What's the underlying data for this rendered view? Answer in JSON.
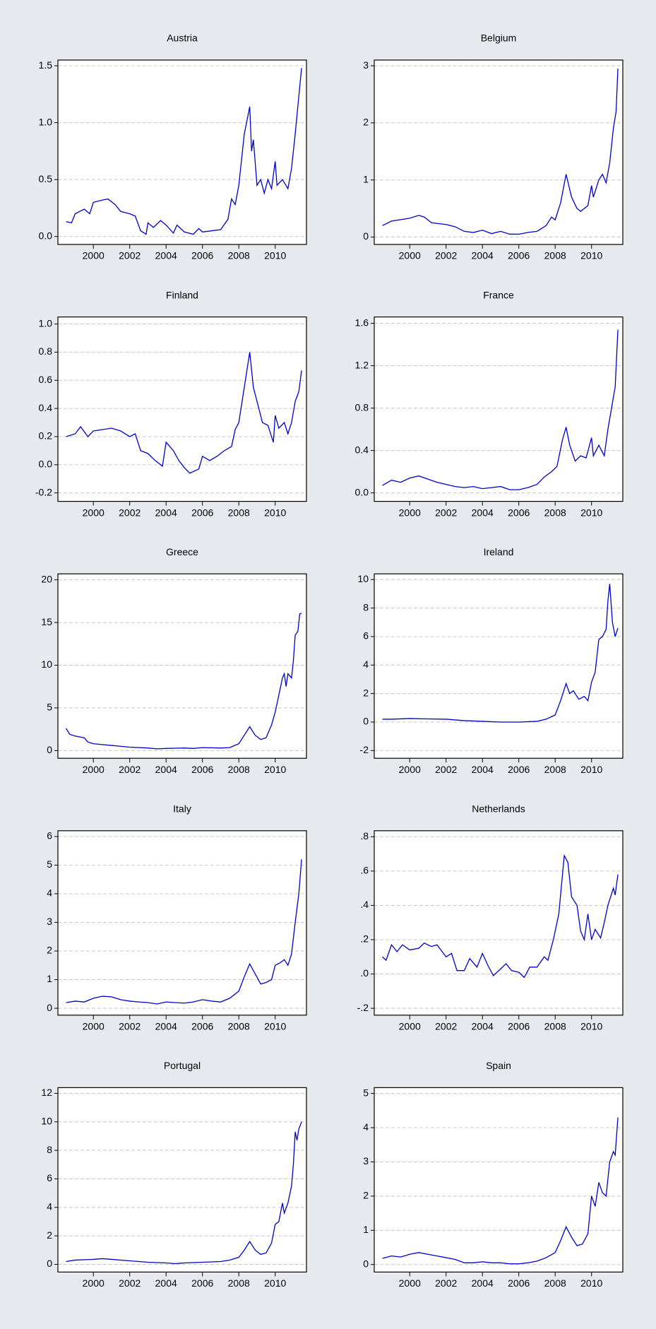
{
  "chart_data": [
    {
      "type": "line",
      "title": "Austria",
      "color": "#0000cc",
      "grid": true,
      "xlim": [
        1998.05,
        2011.72
      ],
      "xticks": [
        2000,
        2002,
        2004,
        2006,
        2008,
        2010
      ],
      "ylim": [
        -0.07,
        1.55
      ],
      "yticks": [
        {
          "value": 0,
          "label": "0.0"
        },
        {
          "value": 0.5,
          "label": "0.5"
        },
        {
          "value": 1,
          "label": "1.0"
        },
        {
          "value": 1.5,
          "label": "1.5"
        }
      ],
      "x": [
        1998.5,
        1998.8,
        1999.0,
        1999.5,
        1999.8,
        2000.0,
        2000.5,
        2000.8,
        2001.2,
        2001.5,
        2002.0,
        2002.3,
        2002.6,
        2002.9,
        2003.0,
        2003.3,
        2003.7,
        2004.0,
        2004.4,
        2004.6,
        2005.0,
        2005.5,
        2005.8,
        2006.0,
        2006.5,
        2007.0,
        2007.4,
        2007.6,
        2007.8,
        2008.0,
        2008.3,
        2008.6,
        2008.7,
        2008.8,
        2009.0,
        2009.2,
        2009.4,
        2009.6,
        2009.8,
        2010.0,
        2010.1,
        2010.4,
        2010.7,
        2010.9,
        2011.1,
        2011.45
      ],
      "values": [
        0.13,
        0.12,
        0.2,
        0.24,
        0.2,
        0.3,
        0.32,
        0.33,
        0.28,
        0.22,
        0.2,
        0.18,
        0.05,
        0.02,
        0.12,
        0.08,
        0.14,
        0.1,
        0.03,
        0.1,
        0.04,
        0.02,
        0.07,
        0.04,
        0.05,
        0.06,
        0.15,
        0.33,
        0.28,
        0.45,
        0.9,
        1.14,
        0.75,
        0.85,
        0.45,
        0.5,
        0.38,
        0.5,
        0.42,
        0.66,
        0.45,
        0.5,
        0.42,
        0.6,
        0.9,
        1.48
      ]
    },
    {
      "type": "line",
      "title": "Belgium",
      "color": "#0000cc",
      "grid": true,
      "xlim": [
        1998.05,
        2011.72
      ],
      "xticks": [
        2000,
        2002,
        2004,
        2006,
        2008,
        2010
      ],
      "ylim": [
        -0.13,
        3.1
      ],
      "yticks": [
        0,
        1,
        2,
        3
      ],
      "x": [
        1998.5,
        1999.0,
        2000.0,
        2000.5,
        2000.8,
        2001.2,
        2002.0,
        2002.5,
        2003.0,
        2003.5,
        2004.0,
        2004.5,
        2005.0,
        2005.5,
        2006.0,
        2006.5,
        2007.0,
        2007.5,
        2007.8,
        2008.0,
        2008.3,
        2008.6,
        2008.9,
        2009.2,
        2009.4,
        2009.8,
        2010.0,
        2010.1,
        2010.4,
        2010.6,
        2010.8,
        2011.0,
        2011.2,
        2011.35,
        2011.45
      ],
      "values": [
        0.2,
        0.28,
        0.33,
        0.38,
        0.35,
        0.25,
        0.22,
        0.18,
        0.1,
        0.08,
        0.12,
        0.06,
        0.1,
        0.05,
        0.05,
        0.08,
        0.1,
        0.2,
        0.35,
        0.3,
        0.6,
        1.1,
        0.7,
        0.5,
        0.45,
        0.55,
        0.9,
        0.7,
        1.0,
        1.1,
        0.95,
        1.3,
        1.9,
        2.2,
        2.95
      ]
    },
    {
      "type": "line",
      "title": "Finland",
      "color": "#0000cc",
      "grid": true,
      "xlim": [
        1998.05,
        2011.72
      ],
      "xticks": [
        2000,
        2002,
        2004,
        2006,
        2008,
        2010
      ],
      "ylim": [
        -0.26,
        1.05
      ],
      "yticks": [
        -0.2,
        {
          "value": 0,
          "label": "0.0"
        },
        0.2,
        0.4,
        0.6,
        0.8,
        {
          "value": 1,
          "label": "1.0"
        }
      ],
      "x": [
        1998.5,
        1999.0,
        1999.3,
        1999.7,
        2000.0,
        2000.5,
        2001.0,
        2001.5,
        2002.0,
        2002.3,
        2002.6,
        2003.0,
        2003.4,
        2003.8,
        2004.0,
        2004.4,
        2004.7,
        2005.0,
        2005.3,
        2005.8,
        2006.0,
        2006.4,
        2006.8,
        2007.2,
        2007.6,
        2007.8,
        2008.0,
        2008.3,
        2008.6,
        2008.8,
        2009.0,
        2009.3,
        2009.6,
        2009.9,
        2010.0,
        2010.2,
        2010.5,
        2010.7,
        2010.9,
        2011.1,
        2011.3,
        2011.45
      ],
      "values": [
        0.2,
        0.22,
        0.27,
        0.2,
        0.24,
        0.25,
        0.26,
        0.24,
        0.2,
        0.22,
        0.1,
        0.08,
        0.03,
        -0.01,
        0.16,
        0.1,
        0.03,
        -0.02,
        -0.06,
        -0.03,
        0.06,
        0.03,
        0.06,
        0.1,
        0.13,
        0.25,
        0.3,
        0.55,
        0.8,
        0.55,
        0.45,
        0.3,
        0.28,
        0.16,
        0.35,
        0.26,
        0.3,
        0.22,
        0.3,
        0.45,
        0.52,
        0.67
      ]
    },
    {
      "type": "line",
      "title": "France",
      "color": "#0000cc",
      "grid": true,
      "xlim": [
        1998.05,
        2011.72
      ],
      "xticks": [
        2000,
        2002,
        2004,
        2006,
        2008,
        2010
      ],
      "ylim": [
        -0.08,
        1.66
      ],
      "yticks": [
        {
          "value": 0,
          "label": "0.0"
        },
        0.4,
        0.8,
        1.2,
        1.6
      ],
      "x": [
        1998.5,
        1999.0,
        1999.5,
        2000.0,
        2000.5,
        2001.0,
        2001.5,
        2002.0,
        2002.5,
        2003.0,
        2003.5,
        2004.0,
        2004.5,
        2005.0,
        2005.5,
        2006.0,
        2006.5,
        2007.0,
        2007.4,
        2007.8,
        2008.1,
        2008.4,
        2008.6,
        2008.8,
        2009.1,
        2009.4,
        2009.7,
        2010.0,
        2010.1,
        2010.4,
        2010.7,
        2010.9,
        2011.1,
        2011.3,
        2011.45
      ],
      "values": [
        0.07,
        0.12,
        0.1,
        0.14,
        0.16,
        0.13,
        0.1,
        0.08,
        0.06,
        0.05,
        0.06,
        0.04,
        0.05,
        0.06,
        0.03,
        0.03,
        0.05,
        0.08,
        0.15,
        0.2,
        0.25,
        0.5,
        0.62,
        0.45,
        0.3,
        0.35,
        0.33,
        0.52,
        0.35,
        0.45,
        0.35,
        0.6,
        0.8,
        1.0,
        1.54
      ]
    },
    {
      "type": "line",
      "title": "Greece",
      "color": "#0000cc",
      "grid": true,
      "xlim": [
        1998.05,
        2011.72
      ],
      "xticks": [
        2000,
        2002,
        2004,
        2006,
        2008,
        2010
      ],
      "ylim": [
        -0.9,
        20.7
      ],
      "yticks": [
        0,
        5,
        10,
        15,
        20
      ],
      "x": [
        1998.5,
        1998.7,
        1999.0,
        1999.5,
        1999.7,
        2000.0,
        2000.5,
        2001.0,
        2001.5,
        2002.0,
        2003.0,
        2003.5,
        2004.0,
        2005.0,
        2005.5,
        2006.0,
        2007.0,
        2007.5,
        2008.0,
        2008.3,
        2008.6,
        2008.9,
        2009.2,
        2009.5,
        2009.8,
        2010.0,
        2010.2,
        2010.4,
        2010.5,
        2010.6,
        2010.7,
        2010.9,
        2011.0,
        2011.1,
        2011.25,
        2011.35,
        2011.45
      ],
      "values": [
        2.6,
        1.9,
        1.7,
        1.5,
        1.0,
        0.8,
        0.7,
        0.6,
        0.5,
        0.4,
        0.3,
        0.2,
        0.25,
        0.3,
        0.25,
        0.35,
        0.3,
        0.35,
        0.8,
        1.8,
        2.8,
        1.8,
        1.3,
        1.5,
        3.0,
        4.5,
        6.5,
        8.5,
        9.0,
        7.5,
        9.0,
        8.5,
        10.5,
        13.5,
        14.0,
        16.0,
        16.1
      ]
    },
    {
      "type": "line",
      "title": "Ireland",
      "color": "#0000cc",
      "grid": true,
      "xlim": [
        1998.05,
        2011.72
      ],
      "xticks": [
        2000,
        2002,
        2004,
        2006,
        2008,
        2010
      ],
      "ylim": [
        -2.54,
        10.4
      ],
      "yticks": [
        -2,
        0,
        2,
        4,
        6,
        8,
        10
      ],
      "x": [
        1998.5,
        1999.0,
        2000.0,
        2001.0,
        2002.0,
        2003.0,
        2004.0,
        2005.0,
        2006.0,
        2007.0,
        2007.5,
        2008.0,
        2008.3,
        2008.6,
        2008.8,
        2009.0,
        2009.3,
        2009.6,
        2009.8,
        2010.0,
        2010.2,
        2010.4,
        2010.6,
        2010.8,
        2010.9,
        2011.0,
        2011.15,
        2011.3,
        2011.45
      ],
      "values": [
        0.2,
        0.2,
        0.25,
        0.22,
        0.2,
        0.1,
        0.05,
        0.0,
        0.0,
        0.05,
        0.2,
        0.5,
        1.5,
        2.7,
        2.0,
        2.2,
        1.6,
        1.8,
        1.5,
        2.8,
        3.5,
        5.8,
        6.0,
        6.5,
        8.5,
        9.7,
        7.0,
        6.0,
        6.6
      ]
    },
    {
      "type": "line",
      "title": "Italy",
      "color": "#0000cc",
      "grid": true,
      "xlim": [
        1998.05,
        2011.72
      ],
      "xticks": [
        2000,
        2002,
        2004,
        2006,
        2008,
        2010
      ],
      "ylim": [
        -0.24,
        6.2
      ],
      "yticks": [
        0,
        1,
        2,
        3,
        4,
        5,
        6
      ],
      "x": [
        1998.5,
        1999.0,
        1999.5,
        2000.0,
        2000.5,
        2001.0,
        2001.5,
        2002.0,
        2002.5,
        2003.0,
        2003.5,
        2004.0,
        2004.5,
        2005.0,
        2005.5,
        2006.0,
        2006.5,
        2007.0,
        2007.5,
        2008.0,
        2008.3,
        2008.6,
        2008.9,
        2009.2,
        2009.5,
        2009.8,
        2010.0,
        2010.3,
        2010.5,
        2010.7,
        2010.9,
        2011.1,
        2011.3,
        2011.45
      ],
      "values": [
        0.2,
        0.25,
        0.22,
        0.35,
        0.42,
        0.4,
        0.3,
        0.25,
        0.22,
        0.2,
        0.15,
        0.22,
        0.2,
        0.18,
        0.22,
        0.3,
        0.25,
        0.22,
        0.35,
        0.6,
        1.1,
        1.55,
        1.2,
        0.85,
        0.9,
        1.0,
        1.5,
        1.6,
        1.7,
        1.5,
        1.9,
        3.0,
        4.0,
        5.2
      ]
    },
    {
      "type": "line",
      "title": "Netherlands",
      "color": "#0000cc",
      "grid": true,
      "xlim": [
        1998.05,
        2011.72
      ],
      "xticks": [
        2000,
        2002,
        2004,
        2006,
        2008,
        2010
      ],
      "ylim": [
        -0.24,
        0.835
      ],
      "yticks": [
        {
          "value": -0.2,
          "label": "-.2"
        },
        {
          "value": 0,
          "label": ".0"
        },
        {
          "value": 0.2,
          "label": ".2"
        },
        {
          "value": 0.4,
          "label": ".4"
        },
        {
          "value": 0.6,
          "label": ".6"
        },
        {
          "value": 0.8,
          "label": ".8"
        }
      ],
      "x": [
        1998.5,
        1998.7,
        1999.0,
        1999.3,
        1999.6,
        2000.0,
        2000.5,
        2000.8,
        2001.2,
        2001.5,
        2002.0,
        2002.3,
        2002.6,
        2003.0,
        2003.3,
        2003.7,
        2004.0,
        2004.3,
        2004.6,
        2005.0,
        2005.3,
        2005.6,
        2006.0,
        2006.3,
        2006.6,
        2007.0,
        2007.4,
        2007.6,
        2007.9,
        2008.2,
        2008.5,
        2008.7,
        2008.9,
        2009.2,
        2009.4,
        2009.6,
        2009.8,
        2010.0,
        2010.2,
        2010.5,
        2010.7,
        2010.9,
        2011.2,
        2011.3,
        2011.45
      ],
      "values": [
        0.1,
        0.08,
        0.17,
        0.13,
        0.17,
        0.14,
        0.15,
        0.18,
        0.16,
        0.17,
        0.1,
        0.12,
        0.02,
        0.02,
        0.09,
        0.04,
        0.12,
        0.05,
        -0.01,
        0.03,
        0.06,
        0.02,
        0.01,
        -0.02,
        0.04,
        0.04,
        0.1,
        0.08,
        0.2,
        0.35,
        0.69,
        0.65,
        0.45,
        0.4,
        0.25,
        0.2,
        0.35,
        0.2,
        0.26,
        0.21,
        0.3,
        0.4,
        0.5,
        0.46,
        0.58
      ]
    },
    {
      "type": "line",
      "title": "Portugal",
      "color": "#0000cc",
      "grid": true,
      "xlim": [
        1998.05,
        2011.72
      ],
      "xticks": [
        2000,
        2002,
        2004,
        2006,
        2008,
        2010
      ],
      "ylim": [
        -0.54,
        12.4
      ],
      "yticks": [
        0,
        2,
        4,
        6,
        8,
        10,
        12
      ],
      "x": [
        1998.5,
        1999.0,
        2000.0,
        2000.5,
        2001.0,
        2002.0,
        2003.0,
        2004.0,
        2004.5,
        2005.0,
        2006.0,
        2007.0,
        2007.5,
        2008.0,
        2008.3,
        2008.6,
        2008.9,
        2009.2,
        2009.5,
        2009.8,
        2010.0,
        2010.2,
        2010.4,
        2010.5,
        2010.7,
        2010.9,
        2011.0,
        2011.1,
        2011.2,
        2011.3,
        2011.45
      ],
      "values": [
        0.2,
        0.3,
        0.35,
        0.4,
        0.35,
        0.25,
        0.15,
        0.1,
        0.05,
        0.1,
        0.15,
        0.2,
        0.3,
        0.5,
        1.0,
        1.6,
        1.0,
        0.7,
        0.8,
        1.5,
        2.8,
        3.0,
        4.3,
        3.6,
        4.3,
        5.5,
        7.0,
        9.3,
        8.7,
        9.5,
        10.0
      ]
    },
    {
      "type": "line",
      "title": "Spain",
      "color": "#0000cc",
      "grid": true,
      "xlim": [
        1998.05,
        2011.72
      ],
      "xticks": [
        2000,
        2002,
        2004,
        2006,
        2008,
        2010
      ],
      "ylim": [
        -0.22,
        5.17
      ],
      "yticks": [
        0,
        1,
        2,
        3,
        4,
        5
      ],
      "x": [
        1998.5,
        1999.0,
        1999.5,
        2000.0,
        2000.5,
        2001.0,
        2001.5,
        2002.0,
        2002.5,
        2003.0,
        2003.5,
        2004.0,
        2004.5,
        2005.0,
        2005.5,
        2006.0,
        2006.5,
        2007.0,
        2007.5,
        2008.0,
        2008.3,
        2008.6,
        2008.9,
        2009.2,
        2009.5,
        2009.8,
        2010.0,
        2010.2,
        2010.4,
        2010.6,
        2010.8,
        2011.0,
        2011.2,
        2011.3,
        2011.45
      ],
      "values": [
        0.18,
        0.25,
        0.22,
        0.3,
        0.35,
        0.3,
        0.25,
        0.2,
        0.15,
        0.05,
        0.05,
        0.08,
        0.05,
        0.05,
        0.02,
        0.02,
        0.05,
        0.1,
        0.2,
        0.35,
        0.7,
        1.1,
        0.8,
        0.55,
        0.6,
        0.9,
        2.0,
        1.7,
        2.4,
        2.1,
        2.0,
        3.0,
        3.3,
        3.2,
        4.3
      ]
    }
  ]
}
